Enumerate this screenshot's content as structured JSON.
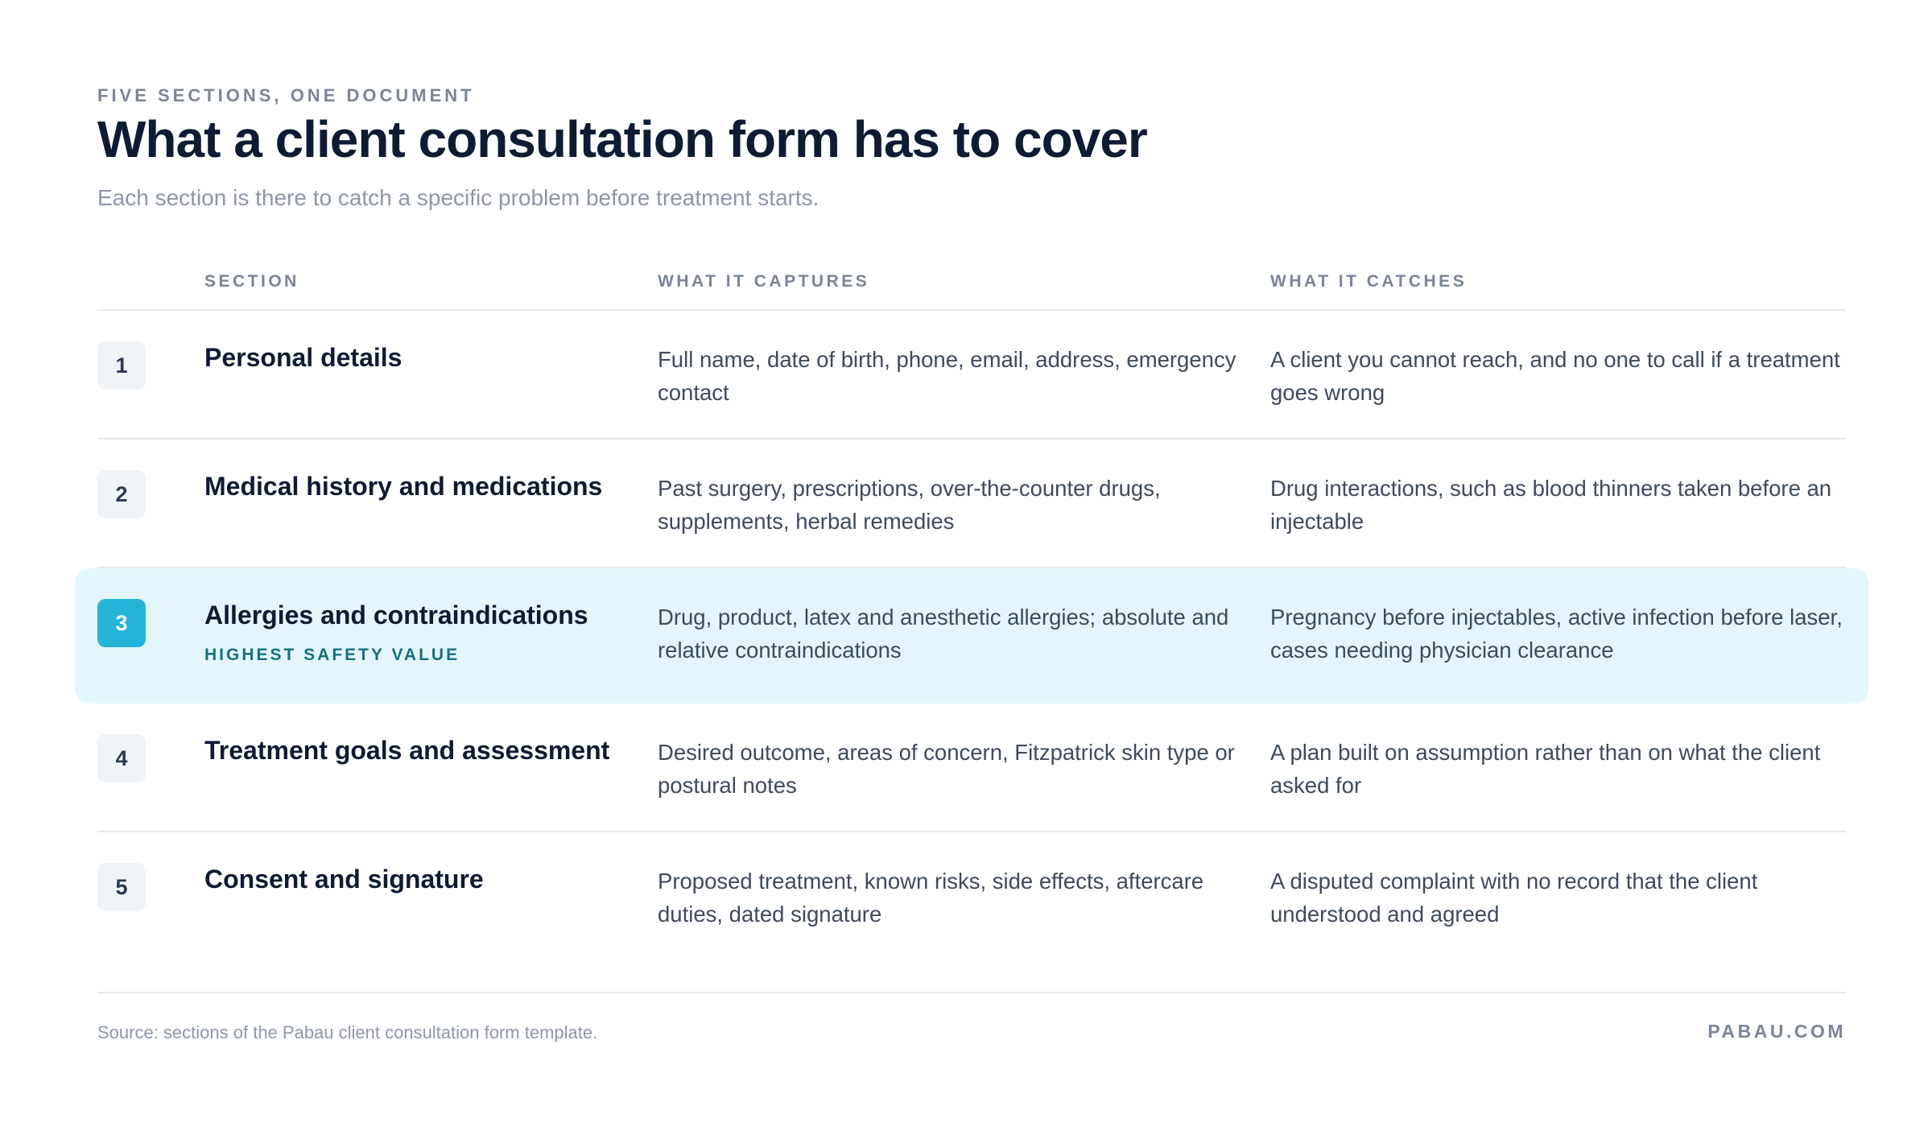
{
  "header": {
    "eyebrow": "FIVE SECTIONS, ONE DOCUMENT",
    "title": "What a client consultation form has to cover",
    "subtitle": "Each section is there to catch a specific problem before treatment starts."
  },
  "table": {
    "columns": {
      "section": "SECTION",
      "captures": "WHAT IT CAPTURES",
      "catches": "WHAT IT CATCHES"
    },
    "rows": [
      {
        "number": "1",
        "section": "Personal details",
        "captures": "Full name, date of birth, phone, email, address, emergency contact",
        "catches": "A client you cannot reach, and no one to call if a treatment goes wrong"
      },
      {
        "number": "2",
        "section": "Medical history and medications",
        "captures": "Past surgery, prescriptions, over-the-counter drugs, supplements, herbal remedies",
        "catches": "Drug interactions, such as blood thinners taken before an injectable"
      },
      {
        "number": "3",
        "section": "Allergies and contraindications",
        "tag": "HIGHEST SAFETY VALUE",
        "captures": "Drug, product, latex and anesthetic allergies; absolute and relative contraindications",
        "catches": "Pregnancy before injectables, active infection before laser, cases needing physician clearance"
      },
      {
        "number": "4",
        "section": "Treatment goals and assessment",
        "captures": "Desired outcome, areas of concern, Fitzpatrick skin type or postural notes",
        "catches": "A plan built on assumption rather than on what the client asked for"
      },
      {
        "number": "5",
        "section": "Consent and signature",
        "captures": "Proposed treatment, known risks, side effects, aftercare duties, dated signature",
        "catches": "A disputed complaint with no record that the client understood and agreed"
      }
    ]
  },
  "footer": {
    "source": "Source: sections of the Pabau client consultation form template.",
    "brand": "PABAU.COM"
  },
  "colors": {
    "highlight_bg": "#e3f6fb",
    "accent": "#24b4d8",
    "tag": "#16707f",
    "title": "#0f1b33"
  }
}
